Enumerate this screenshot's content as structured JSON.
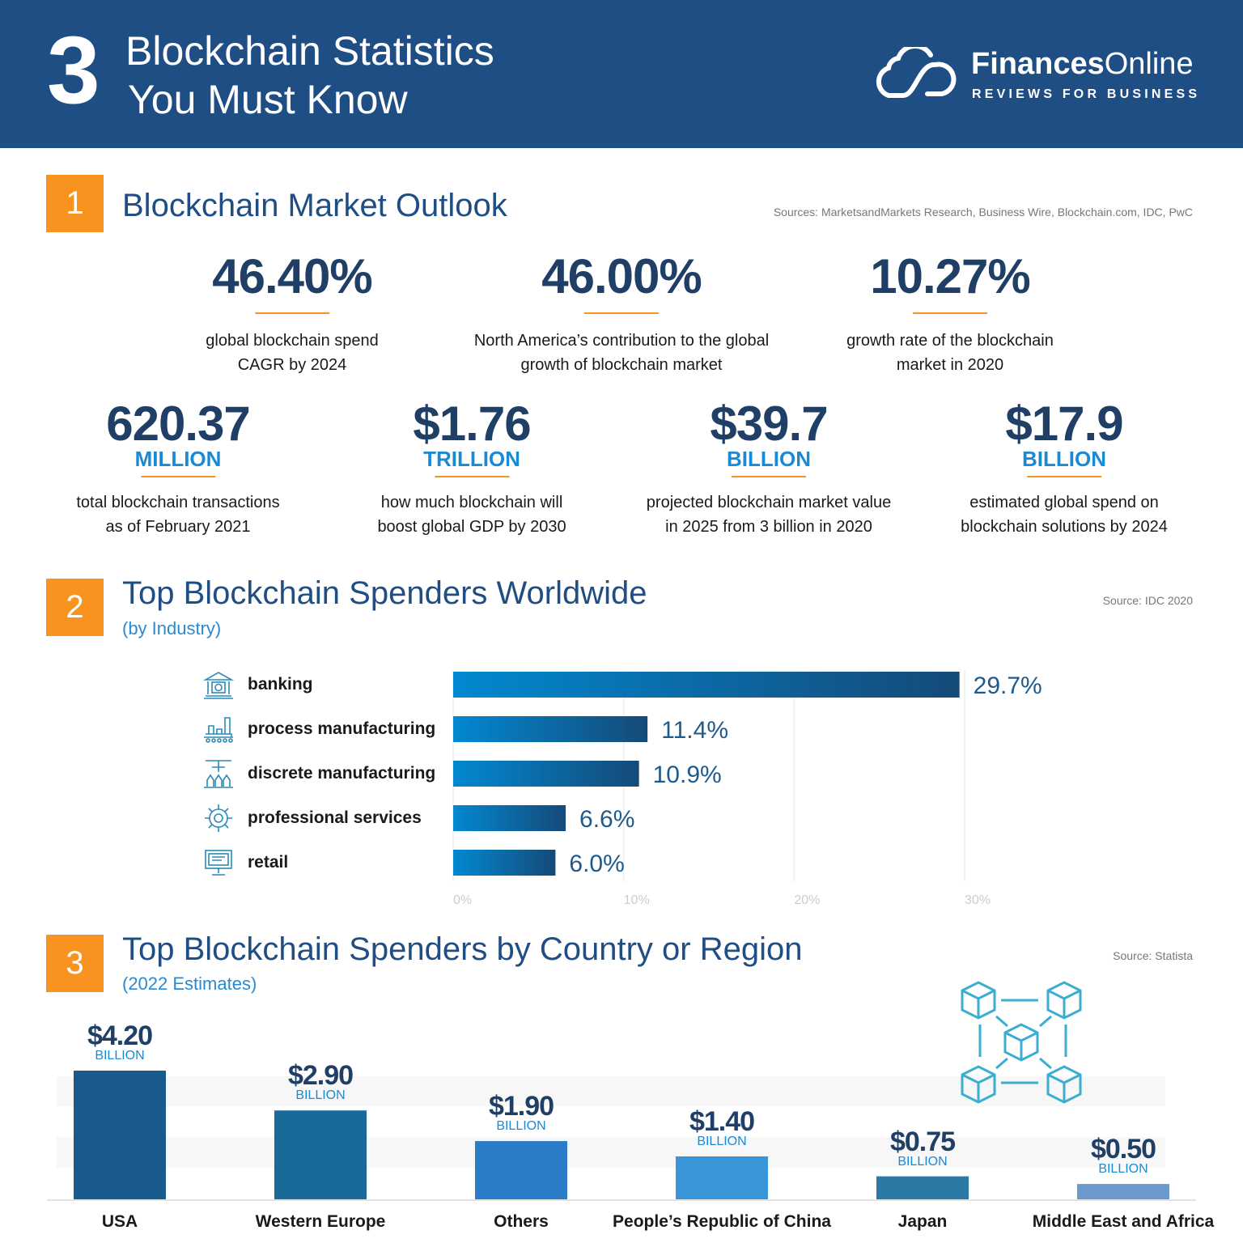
{
  "header": {
    "number": "3",
    "title_line1": "Blockchain Statistics",
    "title_line2": "You Must Know",
    "brand_bold": "Finances",
    "brand_regular": "Online",
    "tagline": "REVIEWS FOR BUSINESS"
  },
  "section1": {
    "number": "1",
    "title": "Blockchain Market Outlook",
    "source": "Sources: MarketsandMarkets Research, Business Wire, Blockchain.com, IDC, PwC",
    "stats_row1": [
      {
        "value": "46.40%",
        "desc1": "global blockchain spend",
        "desc2": "CAGR by 2024"
      },
      {
        "value": "46.00%",
        "desc1": "North America’s contribution to the global",
        "desc2": "growth of blockchain market"
      },
      {
        "value": "10.27%",
        "desc1": "growth rate of the blockchain",
        "desc2": "market in 2020"
      }
    ],
    "stats_row2": [
      {
        "value": "620.37",
        "unit": "MILLION",
        "desc1": "total blockchain transactions",
        "desc2": "as of February 2021"
      },
      {
        "value": "$1.76",
        "unit": "TRILLION",
        "desc1": "how much blockchain will",
        "desc2": "boost global GDP by 2030"
      },
      {
        "value": "$39.7",
        "unit": "BILLION",
        "desc1": "projected blockchain market value",
        "desc2": "in 2025 from 3 billion in 2020"
      },
      {
        "value": "$17.9",
        "unit": "BILLION",
        "desc1": "estimated global spend on",
        "desc2": "blockchain solutions by 2024"
      }
    ]
  },
  "section2": {
    "number": "2",
    "title": "Top Blockchain Spenders Worldwide",
    "subtitle": "(by Industry)",
    "source": "Source: IDC 2020"
  },
  "section3": {
    "number": "3",
    "title": "Top Blockchain Spenders by Country or Region",
    "subtitle": "(2022 Estimates)",
    "source": "Source:  Statista"
  },
  "chart_data": [
    {
      "type": "bar",
      "orientation": "horizontal",
      "categories": [
        "banking",
        "process manufacturing",
        "discrete manufacturing",
        "professional services",
        "retail"
      ],
      "icons": [
        "bank-icon",
        "factory-conveyor-icon",
        "robotic-arm-icon",
        "gear-tools-icon",
        "computer-monitor-icon"
      ],
      "values": [
        29.7,
        11.4,
        10.9,
        6.6,
        6.0
      ],
      "data_labels": [
        "29.7%",
        "11.4%",
        "10.9%",
        "6.6%",
        "6.0%"
      ],
      "xlim": [
        0,
        30
      ],
      "xticks": [
        "0%",
        "10%",
        "20%",
        "30%"
      ],
      "grid": true,
      "colors": [
        "#0288d1",
        "#154a78"
      ]
    },
    {
      "type": "bar",
      "categories": [
        "USA",
        "Western Europe",
        "Others",
        "People’s Republic of China",
        "Japan",
        "Middle East and Africa"
      ],
      "values": [
        4.2,
        2.9,
        1.9,
        1.4,
        0.75,
        0.5
      ],
      "data_labels": [
        "$4.20",
        "$2.90",
        "$1.90",
        "$1.40",
        "$0.75",
        "$0.50"
      ],
      "unit_label": "BILLION",
      "colors": [
        "#185a8c",
        "#196a9b",
        "#2a7cc8",
        "#3a94d8",
        "#2b7aa6",
        "#6b99cc"
      ]
    }
  ]
}
